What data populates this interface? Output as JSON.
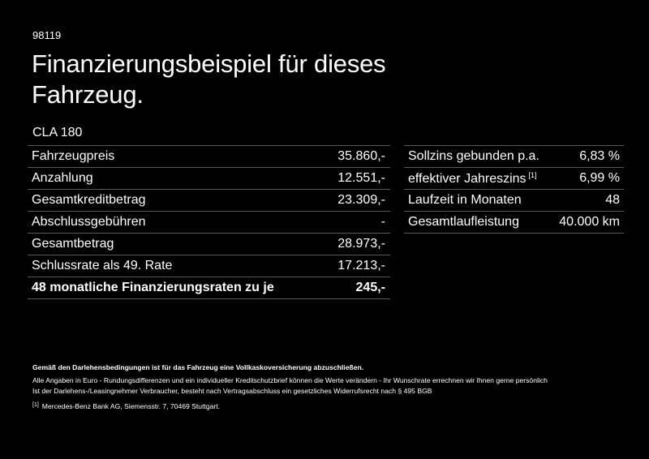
{
  "code": "98119",
  "title_line1": "Finanzierungsbeispiel für dieses",
  "title_line2": "Fahrzeug.",
  "model": "CLA 180",
  "left_table": [
    {
      "label": "Fahrzeugpreis",
      "value": "35.860,-"
    },
    {
      "label": "Anzahlung",
      "value": "12.551,-"
    },
    {
      "label": "Gesamtkreditbetrag",
      "value": "23.309,-"
    },
    {
      "label": "Abschlussgebühren",
      "value": "-"
    },
    {
      "label": "Gesamtbetrag",
      "value": "28.973,-"
    },
    {
      "label": "Schlussrate als 49. Rate",
      "value": "17.213,-"
    },
    {
      "label": "48 monatliche Finanzierungsraten zu je",
      "value": "245,-"
    }
  ],
  "right_table": [
    {
      "label": "Sollzins gebunden p.a.",
      "value": "6,83 %"
    },
    {
      "label": "effektiver Jahreszins",
      "sup": "[1]",
      "value": "6,99 %"
    },
    {
      "label": "Laufzeit in Monaten",
      "value": "48"
    },
    {
      "label": "Gesamtlaufleistung",
      "value": "40.000 km"
    }
  ],
  "notes": {
    "bold": "Gemäß den Darlehensbedingungen ist für das Fahrzeug eine Vollkaskoversicherung abzuschließen.",
    "line1": "Alle Angaben in Euro - Rundungsdifferenzen und ein individueller Kreditschutzbrief können die Werte verändern - Ihr Wunschrate errechnen wir Ihnen gerne persönlich",
    "line2": "Ist der Darlehens-/Leasingnehmer Verbraucher, besteht nach Vertragsabschluss ein gesetzliches Widerrufsrecht nach § 495 BGB",
    "footnote_mark": "[1]",
    "footnote": "Mercedes-Benz Bank AG, Siemensstr. 7, 70469 Stuttgart."
  }
}
